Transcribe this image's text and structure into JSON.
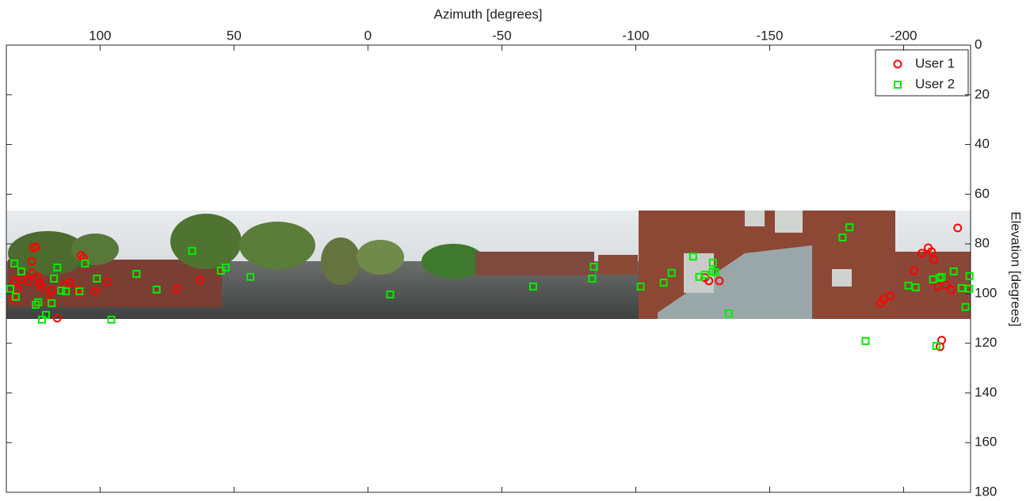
{
  "chart_data": {
    "type": "scatter",
    "x_label": "Azimuth [degrees]",
    "y_label": "Elevation [degrees]",
    "xlim": [
      135,
      -225
    ],
    "xticks": [
      100,
      50,
      0,
      -50,
      -100,
      -150,
      -200
    ],
    "ylim": [
      0,
      180
    ],
    "yticks": [
      0,
      20,
      40,
      60,
      80,
      100,
      120,
      140,
      160,
      180
    ],
    "x_reversed": true,
    "y_reversed": true,
    "legend": "northeast",
    "series": [
      {
        "name": "User 1",
        "color": "#ff0000",
        "marker": "circle",
        "x": [
          132.3,
          131.8,
          130.9,
          129.1,
          126.7,
          125.5,
          124.9,
          124.0,
          125.5,
          123.1,
          122.6,
          122.0,
          119.0,
          118.1,
          116.0,
          113.1,
          111.3,
          108.3,
          107.7,
          107.1,
          106.2,
          101.8,
          97.3,
          71.5,
          62.6,
          -125.8,
          -127.3,
          -131.2,
          -191.4,
          -192.6,
          -195.0,
          -203.9,
          -206.8,
          -209.2,
          -210.4,
          -211.3,
          -212.8,
          -214.2,
          -213.6,
          -215.7,
          -217.8,
          -220.2
        ],
        "values": [
          101.9,
          94.9,
          98.1,
          94.0,
          94.9,
          87.0,
          81.6,
          81.2,
          91.7,
          93.3,
          95.9,
          97.2,
          100.4,
          98.8,
          109.9,
          96.5,
          95.6,
          98.4,
          99.7,
          84.7,
          85.7,
          99.1,
          95.3,
          98.1,
          94.6,
          93.6,
          94.9,
          94.9,
          103.9,
          102.3,
          101.0,
          90.8,
          83.8,
          81.6,
          83.1,
          86.3,
          97.2,
          118.8,
          121.4,
          96.5,
          98.4,
          73.6
        ]
      },
      {
        "name": "User 2",
        "color": "#00ee00",
        "marker": "square",
        "x": [
          133.5,
          132.0,
          131.5,
          129.4,
          124.0,
          123.1,
          121.7,
          120.2,
          118.1,
          117.2,
          116.0,
          114.5,
          112.8,
          107.7,
          105.6,
          101.2,
          95.8,
          86.4,
          78.9,
          65.6,
          54.9,
          53.1,
          43.9,
          -8.3,
          -61.7,
          -83.7,
          -84.3,
          -101.8,
          -110.4,
          -113.4,
          -121.4,
          -123.7,
          -125.8,
          -128.8,
          -128.8,
          -129.7,
          -134.7,
          -177.2,
          -179.8,
          -185.8,
          -201.8,
          -204.5,
          -211.0,
          -212.2,
          -213.4,
          -214.2,
          -218.7,
          -221.7,
          -223.1,
          -224.6,
          -224.5
        ],
        "values": [
          98.1,
          87.9,
          101.3,
          91.1,
          104.5,
          103.5,
          110.5,
          108.6,
          103.9,
          94.0,
          89.5,
          98.8,
          99.1,
          99.1,
          87.9,
          94.0,
          110.5,
          92.1,
          98.4,
          82.8,
          90.8,
          89.5,
          93.3,
          100.4,
          97.2,
          94.0,
          89.2,
          97.2,
          95.6,
          91.7,
          85.1,
          93.3,
          92.4,
          91.1,
          87.6,
          91.4,
          108.0,
          77.4,
          73.3,
          119.1,
          96.8,
          97.5,
          94.3,
          121.1,
          93.7,
          93.3,
          91.1,
          97.8,
          105.4,
          93.0,
          98.1
        ]
      }
    ]
  }
}
